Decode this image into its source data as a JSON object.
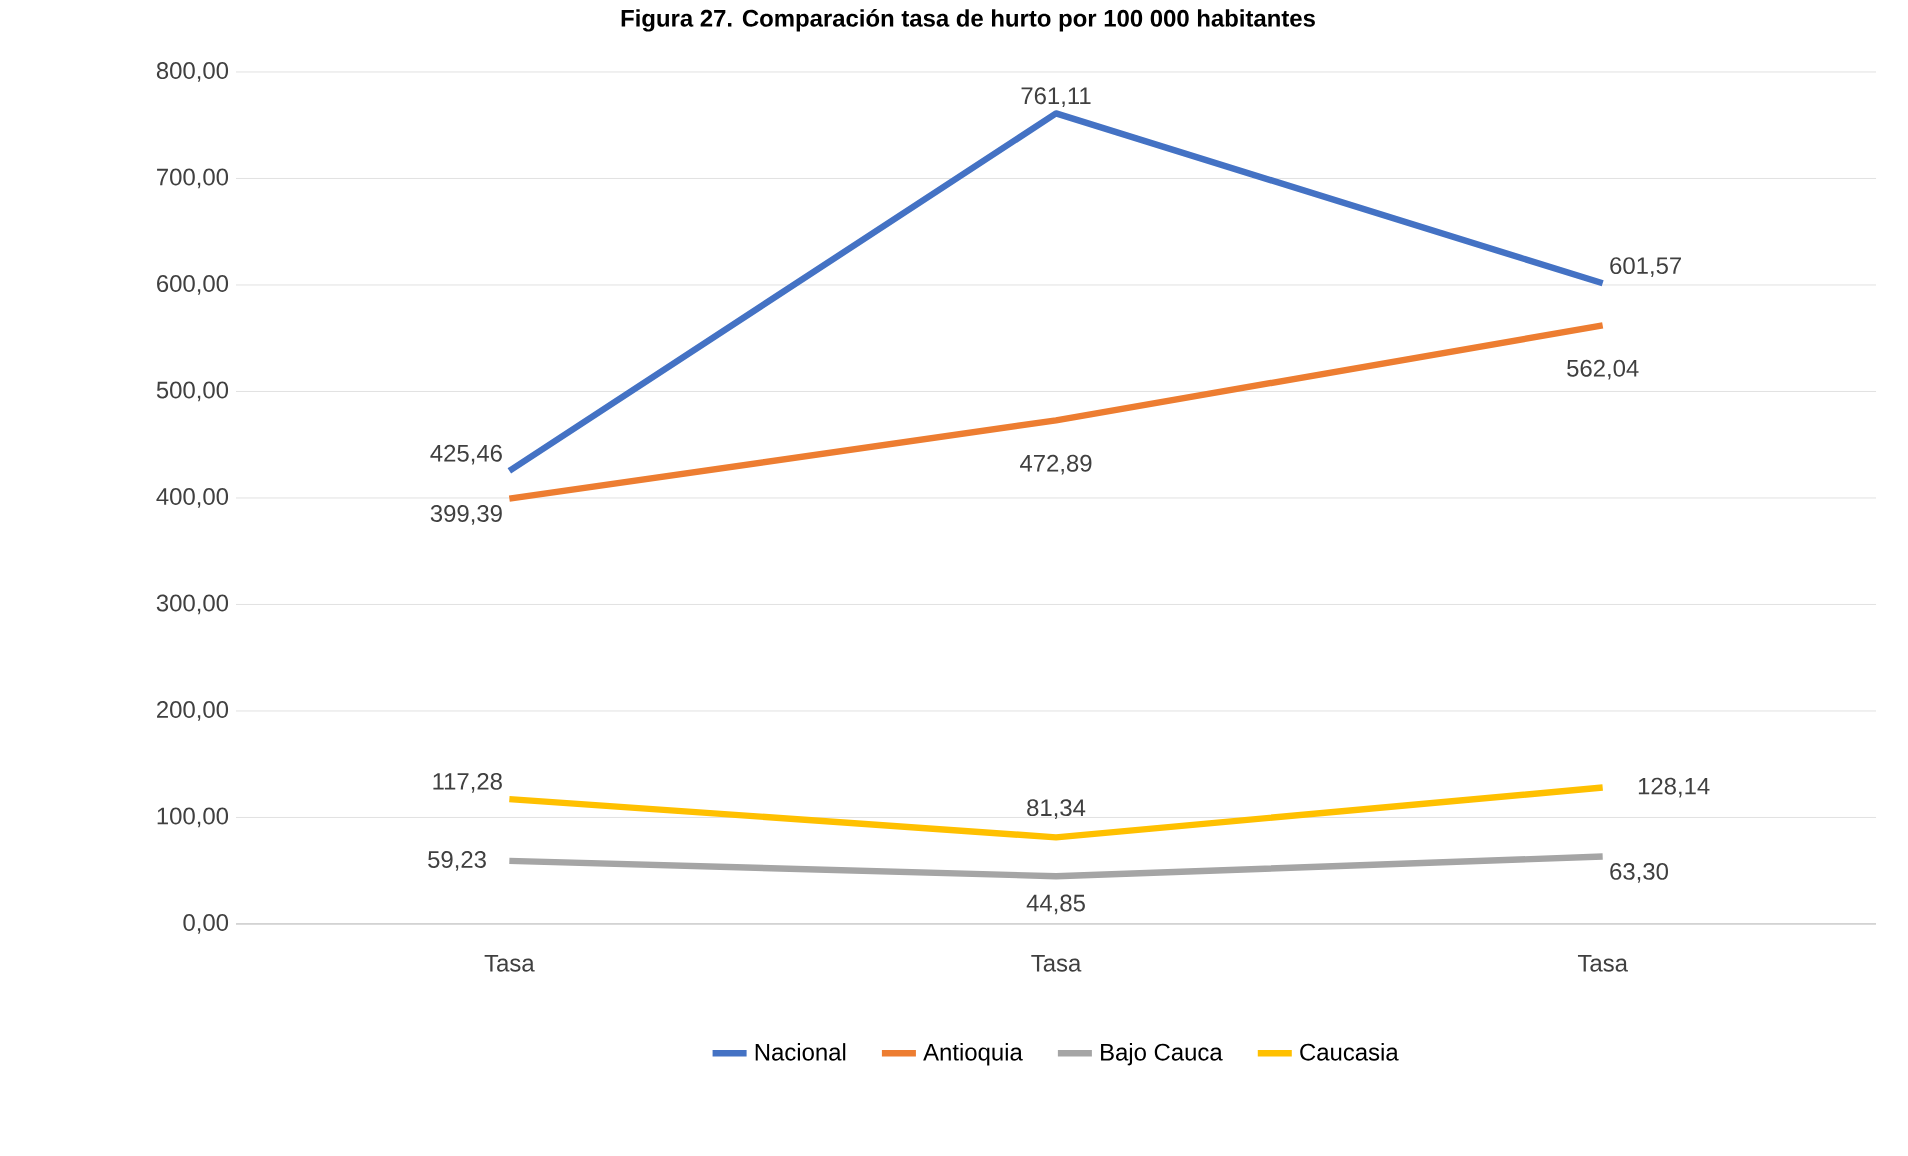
{
  "chart_data": {
    "type": "line",
    "title": "Figura 27. Comparación tasa de hurto por 100 000 habitantes",
    "categories": [
      "Tasa",
      "Tasa",
      "Tasa"
    ],
    "series": [
      {
        "name": "Nacional",
        "color": "#4472c4",
        "values": [
          425.46,
          761.11,
          601.57
        ],
        "value_labels": [
          "425,46",
          "761,11",
          "601,57"
        ]
      },
      {
        "name": "Antioquia",
        "color": "#ed7d31",
        "values": [
          399.39,
          472.89,
          562.04
        ],
        "value_labels": [
          "399,39",
          "472,89",
          "562,04"
        ]
      },
      {
        "name": "Bajo Cauca",
        "color": "#a5a5a5",
        "values": [
          59.23,
          44.85,
          63.3
        ],
        "value_labels": [
          "59,23",
          "44,85",
          "63,30"
        ]
      },
      {
        "name": "Caucasia",
        "color": "#ffc000",
        "values": [
          117.28,
          81.34,
          128.14
        ],
        "value_labels": [
          "117,28",
          "81,34",
          "128,14"
        ]
      }
    ],
    "ylim": [
      0,
      800
    ],
    "yticks": [
      {
        "value": 0,
        "label": "0,00"
      },
      {
        "value": 100,
        "label": "100,00"
      },
      {
        "value": 200,
        "label": "200,00"
      },
      {
        "value": 300,
        "label": "300,00"
      },
      {
        "value": 400,
        "label": "400,00"
      },
      {
        "value": 500,
        "label": "500,00"
      },
      {
        "value": 600,
        "label": "600,00"
      },
      {
        "value": 700,
        "label": "700,00"
      },
      {
        "value": 800,
        "label": "800,00"
      }
    ],
    "grid": "y",
    "legend": "bottom",
    "marker": "none",
    "line_style": "solid"
  }
}
